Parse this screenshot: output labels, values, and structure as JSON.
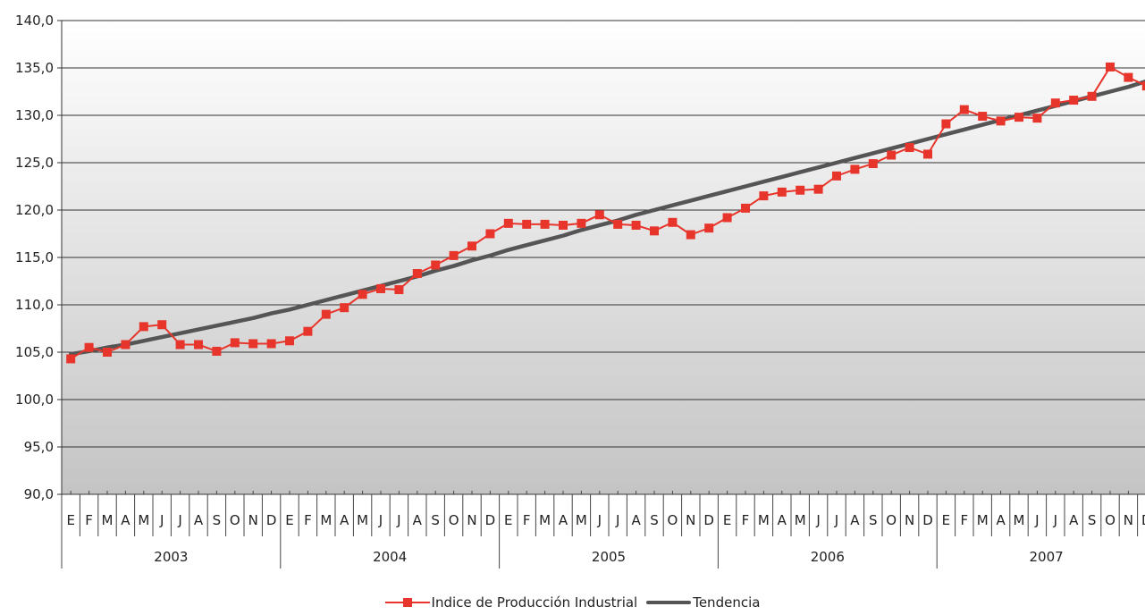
{
  "chart_data": {
    "type": "line",
    "title": "",
    "xlabel": "",
    "ylabel": "",
    "ylim": [
      90,
      140
    ],
    "yticks": [
      "90,0",
      "95,0",
      "100,0",
      "105,0",
      "110,0",
      "115,0",
      "120,0",
      "125,0",
      "130,0",
      "135,0",
      "140,0"
    ],
    "months": [
      "E",
      "F",
      "M",
      "A",
      "M",
      "J",
      "J",
      "A",
      "S",
      "O",
      "N",
      "D"
    ],
    "years": [
      "2003",
      "2004",
      "2005",
      "2006",
      "2007"
    ],
    "grid": true,
    "legend_position": "bottom",
    "series": [
      {
        "name": "Indice de Producción Industrial",
        "color": "#e8352b",
        "marker": "square",
        "values": [
          104.3,
          105.5,
          105.0,
          105.8,
          107.7,
          107.9,
          105.8,
          105.8,
          105.1,
          106.0,
          105.9,
          105.9,
          106.2,
          107.2,
          109.0,
          109.7,
          111.1,
          111.7,
          111.6,
          113.3,
          114.2,
          115.2,
          116.2,
          117.5,
          118.6,
          118.5,
          118.5,
          118.4,
          118.6,
          119.5,
          118.5,
          118.4,
          117.8,
          118.7,
          117.4,
          118.1,
          119.2,
          120.2,
          121.5,
          121.9,
          122.1,
          122.2,
          123.6,
          124.3,
          124.9,
          125.8,
          126.6,
          125.9,
          129.1,
          130.6,
          129.9,
          129.4,
          129.8,
          129.7,
          131.3,
          131.6,
          132.0,
          135.1,
          134.0,
          133.1
        ]
      },
      {
        "name": "Tendencia",
        "color": "#555555",
        "marker": "none",
        "values": [
          104.8,
          105.1,
          105.5,
          105.8,
          106.2,
          106.6,
          107.0,
          107.4,
          107.8,
          108.2,
          108.6,
          109.1,
          109.5,
          110.0,
          110.5,
          111.0,
          111.5,
          112.0,
          112.5,
          113.0,
          113.6,
          114.1,
          114.7,
          115.2,
          115.8,
          116.3,
          116.8,
          117.3,
          117.9,
          118.4,
          118.9,
          119.5,
          120.0,
          120.5,
          121.0,
          121.5,
          122.0,
          122.5,
          123.0,
          123.5,
          124.0,
          124.5,
          125.0,
          125.5,
          126.0,
          126.5,
          127.0,
          127.5,
          128.0,
          128.5,
          129.0,
          129.5,
          130.0,
          130.5,
          131.0,
          131.5,
          132.0,
          132.5,
          133.0,
          133.6
        ]
      }
    ]
  }
}
